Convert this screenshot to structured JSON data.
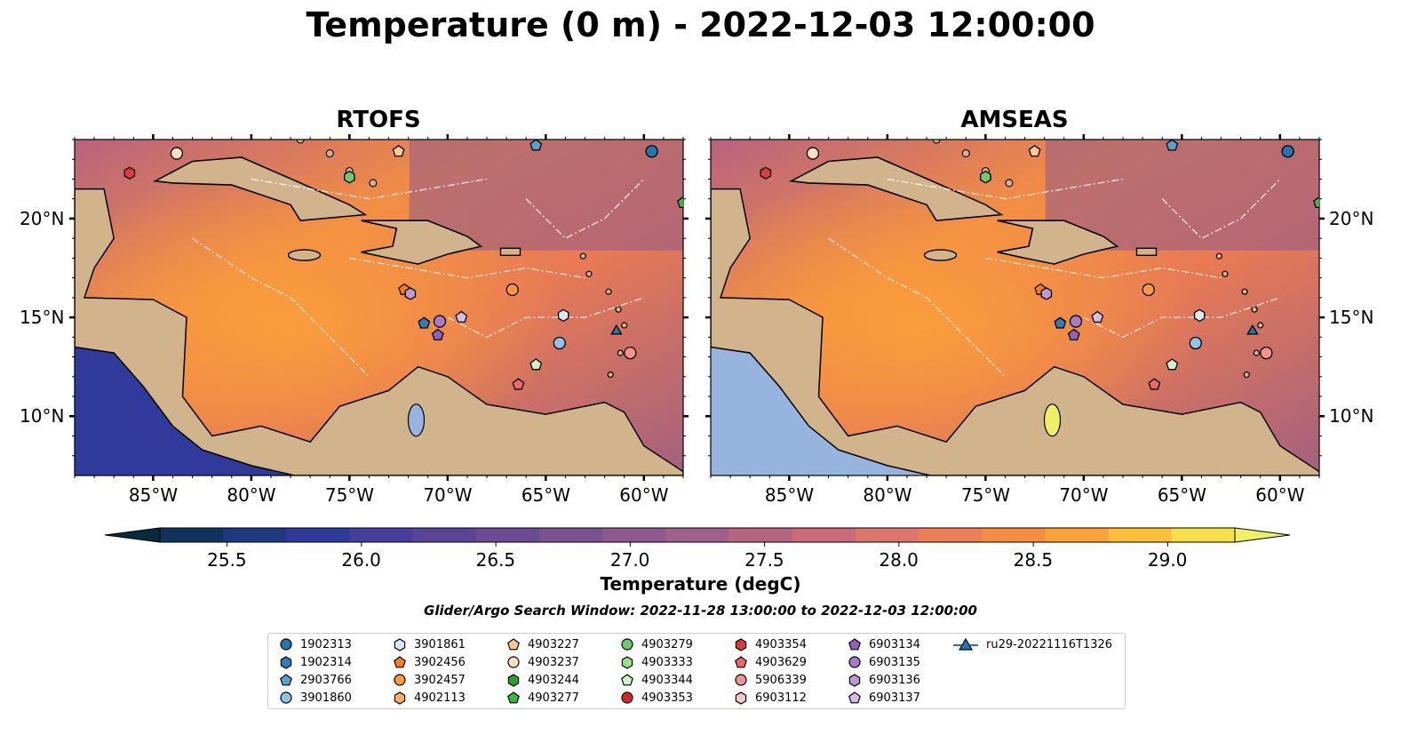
{
  "title": "Temperature (0 m) - 2022-12-03 12:00:00",
  "panels": [
    {
      "title": "RTOFS"
    },
    {
      "title": "AMSEAS"
    }
  ],
  "x_tick_labels": [
    "85°W",
    "80°W",
    "75°W",
    "70°W",
    "65°W",
    "60°W"
  ],
  "y_tick_labels": [
    "20°N",
    "15°N",
    "10°N"
  ],
  "map_extent": {
    "lon": [
      -89,
      -58
    ],
    "lat": [
      7,
      24
    ]
  },
  "colorbar": {
    "label": "Temperature (degC)",
    "tick_labels": [
      "25.5",
      "26.0",
      "26.5",
      "27.0",
      "27.5",
      "28.0",
      "28.5",
      "29.0"
    ],
    "range": [
      25.25,
      29.25
    ],
    "step": 0.25,
    "extend": "both",
    "colors": [
      "#072a3c",
      "#12325e",
      "#1f3980",
      "#2f3a9a",
      "#473e9b",
      "#5a4496",
      "#6a4c94",
      "#7b5391",
      "#8d5a8e",
      "#a06088",
      "#b46681",
      "#c96c77",
      "#dc756a",
      "#ec7e58",
      "#f78d42",
      "#fba238",
      "#fbbf3a",
      "#f6e049",
      "#eef063"
    ]
  },
  "search_window": "Glider/Argo Search Window: 2022-11-28 13:00:00 to 2022-12-03 12:00:00",
  "land_color": "#d2b48c",
  "missing_ocean_color": "#96b4de",
  "legend": [
    {
      "label": "1902313",
      "marker": "circle",
      "color": "#1f77b4"
    },
    {
      "label": "1902314",
      "marker": "hexagon",
      "color": "#2d7dbd"
    },
    {
      "label": "2903766",
      "marker": "pentagon",
      "color": "#5aa0cf"
    },
    {
      "label": "3901860",
      "marker": "circle",
      "color": "#8ec4e8"
    },
    {
      "label": "3901861",
      "marker": "hexagon",
      "color": "#d7e9f7"
    },
    {
      "label": "3902456",
      "marker": "pentagon",
      "color": "#f57f1f"
    },
    {
      "label": "3902457",
      "marker": "circle",
      "color": "#fb9a3a"
    },
    {
      "label": "4902113",
      "marker": "hexagon",
      "color": "#fdb066"
    },
    {
      "label": "4903227",
      "marker": "pentagon",
      "color": "#fdc98f"
    },
    {
      "label": "4903237",
      "marker": "circle",
      "color": "#fde0c2"
    },
    {
      "label": "4903244",
      "marker": "hexagon",
      "color": "#2ca02c"
    },
    {
      "label": "4903277",
      "marker": "pentagon",
      "color": "#3fb63f"
    },
    {
      "label": "4903279",
      "marker": "circle",
      "color": "#6ccb6c"
    },
    {
      "label": "4903333",
      "marker": "hexagon",
      "color": "#98df8a"
    },
    {
      "label": "4903344",
      "marker": "pentagon",
      "color": "#cdf2c6"
    },
    {
      "label": "4903353",
      "marker": "circle",
      "color": "#d62728"
    },
    {
      "label": "4903354",
      "marker": "hexagon",
      "color": "#de3b3d"
    },
    {
      "label": "4903629",
      "marker": "pentagon",
      "color": "#ea6a6c"
    },
    {
      "label": "5906339",
      "marker": "circle",
      "color": "#f4938f"
    },
    {
      "label": "6903112",
      "marker": "hexagon",
      "color": "#fbc7c5"
    },
    {
      "label": "6903134",
      "marker": "pentagon",
      "color": "#8d62b7"
    },
    {
      "label": "6903135",
      "marker": "circle",
      "color": "#a57ccb"
    },
    {
      "label": "6903136",
      "marker": "hexagon",
      "color": "#bc9ad9"
    },
    {
      "label": "6903137",
      "marker": "pentagon",
      "color": "#d6bde9"
    },
    {
      "label": "ru29-20221116T1326",
      "marker": "triangle-line",
      "color": "#1f77b4"
    }
  ],
  "markers": [
    {
      "lon": -83.8,
      "lat": 23.3,
      "marker": "circle",
      "color": "#fde0c2"
    },
    {
      "lon": -86.2,
      "lat": 22.3,
      "marker": "hexagon",
      "color": "#de3b3d"
    },
    {
      "lon": -72.5,
      "lat": 23.4,
      "marker": "pentagon",
      "color": "#fdc98f"
    },
    {
      "lon": -75.0,
      "lat": 22.1,
      "marker": "hexagon",
      "color": "#6ccb6c"
    },
    {
      "lon": -65.5,
      "lat": 23.7,
      "marker": "pentagon",
      "color": "#5aa0cf"
    },
    {
      "lon": -59.6,
      "lat": 23.4,
      "marker": "circle",
      "color": "#1f77b4"
    },
    {
      "lon": -58.0,
      "lat": 20.8,
      "marker": "pentagon",
      "color": "#3fb63f"
    },
    {
      "lon": -72.2,
      "lat": 16.4,
      "marker": "pentagon",
      "color": "#f57f1f"
    },
    {
      "lon": -71.9,
      "lat": 16.2,
      "marker": "hexagon",
      "color": "#bc9ad9"
    },
    {
      "lon": -66.7,
      "lat": 16.4,
      "marker": "circle",
      "color": "#fb9a3a"
    },
    {
      "lon": -64.1,
      "lat": 15.1,
      "marker": "hexagon",
      "color": "#d7e9f7"
    },
    {
      "lon": -71.2,
      "lat": 14.7,
      "marker": "pentagon",
      "color": "#2d7dbd"
    },
    {
      "lon": -70.4,
      "lat": 14.8,
      "marker": "circle",
      "color": "#a57ccb"
    },
    {
      "lon": -69.3,
      "lat": 15.0,
      "marker": "pentagon",
      "color": "#d6bde9"
    },
    {
      "lon": -70.5,
      "lat": 14.1,
      "marker": "pentagon",
      "color": "#8d62b7"
    },
    {
      "lon": -64.3,
      "lat": 13.7,
      "marker": "circle",
      "color": "#8ec4e8"
    },
    {
      "lon": -65.5,
      "lat": 12.6,
      "marker": "pentagon",
      "color": "#cdf2c6"
    },
    {
      "lon": -66.4,
      "lat": 11.6,
      "marker": "pentagon",
      "color": "#ea6a6c"
    },
    {
      "lon": -60.7,
      "lat": 13.2,
      "marker": "circle",
      "color": "#f4938f"
    },
    {
      "lon": -61.4,
      "lat": 14.3,
      "marker": "triangle",
      "color": "#1f77b4"
    }
  ]
}
